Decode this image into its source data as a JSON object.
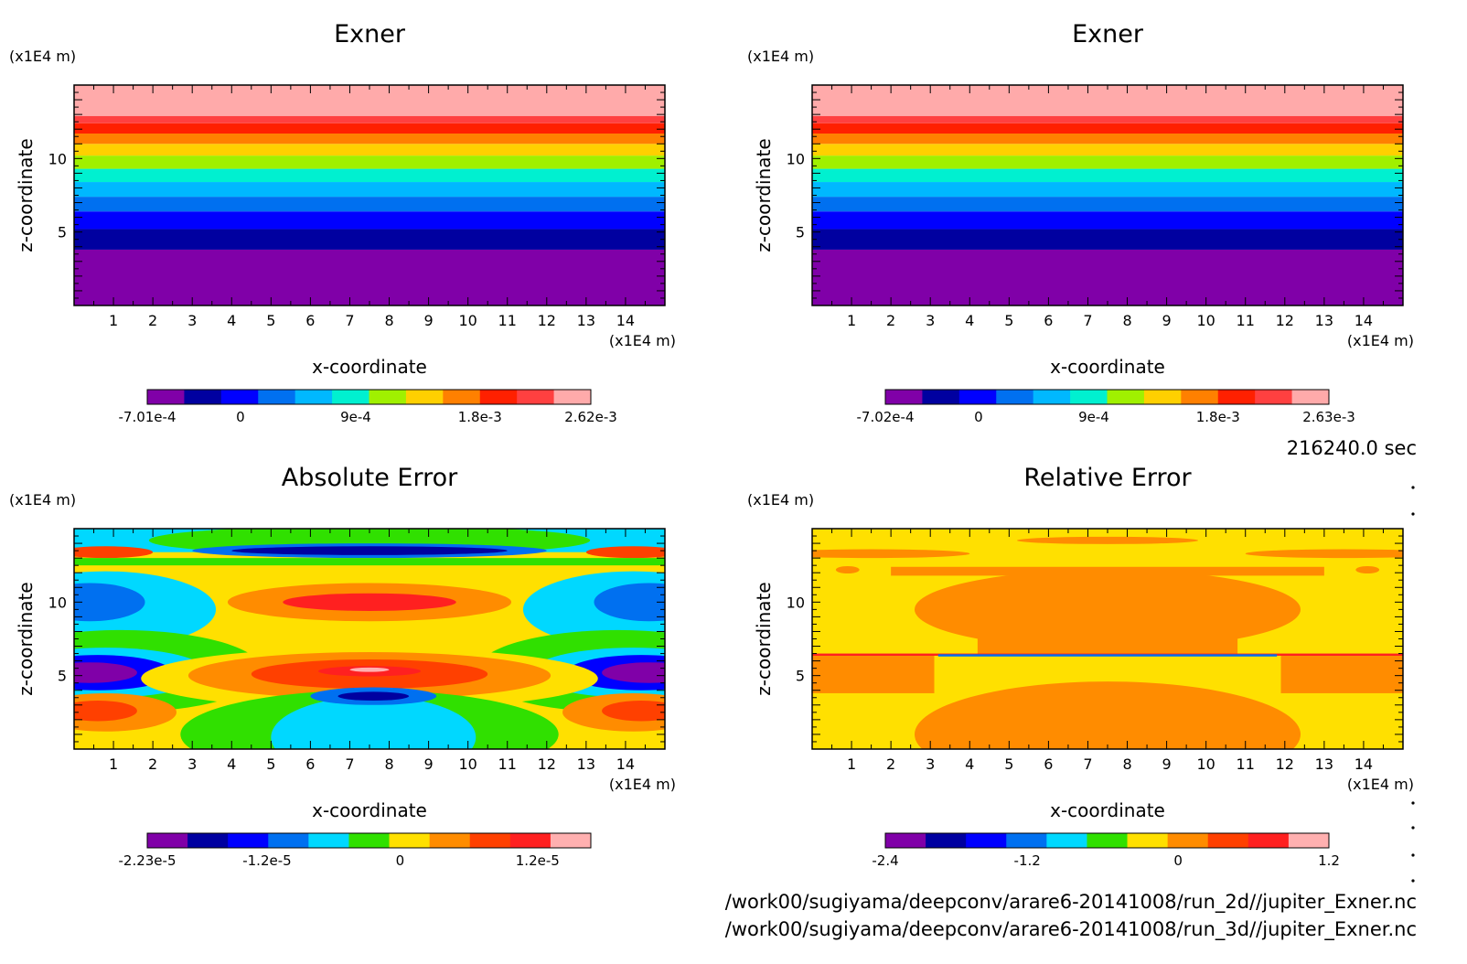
{
  "chart_data": [
    {
      "type": "contour",
      "title": "Exner",
      "xlabel": "x-coordinate",
      "ylabel": "z-coordinate",
      "x_unit": "(x1E4 m)",
      "y_unit": "(x1E4 m)",
      "xlim": [
        0,
        15
      ],
      "ylim": [
        0,
        15
      ],
      "x_ticks": [
        "1",
        "2",
        "3",
        "4",
        "5",
        "6",
        "7",
        "8",
        "9",
        "10",
        "11",
        "12",
        "13",
        "14"
      ],
      "y_ticks": [
        "5",
        "10"
      ],
      "colorbar": {
        "tick_labels": [
          "-7.01e-4",
          "0",
          "9e-4",
          "1.8e-3",
          "2.62e-3"
        ],
        "colors": [
          "#8000a8",
          "#0000a0",
          "#0000ff",
          "#0070f0",
          "#00b8ff",
          "#00f0d0",
          "#a0f000",
          "#ffd000",
          "#ff8000",
          "#ff2000",
          "#ff4040",
          "#ffaaaa"
        ]
      },
      "bands": [
        {
          "z": [
            0.0,
            3.8
          ],
          "color": "#8000a8"
        },
        {
          "z": [
            3.8,
            5.2
          ],
          "color": "#0000a0"
        },
        {
          "z": [
            5.2,
            6.4
          ],
          "color": "#0000ff"
        },
        {
          "z": [
            6.4,
            7.4
          ],
          "color": "#0070f0"
        },
        {
          "z": [
            7.4,
            8.4
          ],
          "color": "#00b8ff"
        },
        {
          "z": [
            8.4,
            9.3
          ],
          "color": "#00f0d0"
        },
        {
          "z": [
            9.3,
            10.2
          ],
          "color": "#a0f000"
        },
        {
          "z": [
            10.2,
            11.0
          ],
          "color": "#ffd000"
        },
        {
          "z": [
            11.0,
            11.7
          ],
          "color": "#ff8000"
        },
        {
          "z": [
            11.7,
            12.4
          ],
          "color": "#ff2000"
        },
        {
          "z": [
            12.4,
            12.9
          ],
          "color": "#ff4040"
        },
        {
          "z": [
            12.9,
            15.0
          ],
          "color": "#ffaaaa"
        }
      ]
    },
    {
      "type": "contour",
      "title": "Exner",
      "xlabel": "x-coordinate",
      "ylabel": "z-coordinate",
      "x_unit": "(x1E4 m)",
      "y_unit": "(x1E4 m)",
      "xlim": [
        0,
        15
      ],
      "ylim": [
        0,
        15
      ],
      "x_ticks": [
        "1",
        "2",
        "3",
        "4",
        "5",
        "6",
        "7",
        "8",
        "9",
        "10",
        "11",
        "12",
        "13",
        "14"
      ],
      "y_ticks": [
        "5",
        "10"
      ],
      "colorbar": {
        "tick_labels": [
          "-7.02e-4",
          "0",
          "9e-4",
          "1.8e-3",
          "2.63e-3"
        ],
        "colors": [
          "#8000a8",
          "#0000a0",
          "#0000ff",
          "#0070f0",
          "#00b8ff",
          "#00f0d0",
          "#a0f000",
          "#ffd000",
          "#ff8000",
          "#ff2000",
          "#ff4040",
          "#ffaaaa"
        ]
      },
      "bands": [
        {
          "z": [
            0.0,
            3.8
          ],
          "color": "#8000a8"
        },
        {
          "z": [
            3.8,
            5.2
          ],
          "color": "#0000a0"
        },
        {
          "z": [
            5.2,
            6.4
          ],
          "color": "#0000ff"
        },
        {
          "z": [
            6.4,
            7.4
          ],
          "color": "#0070f0"
        },
        {
          "z": [
            7.4,
            8.4
          ],
          "color": "#00b8ff"
        },
        {
          "z": [
            8.4,
            9.3
          ],
          "color": "#00f0d0"
        },
        {
          "z": [
            9.3,
            10.2
          ],
          "color": "#a0f000"
        },
        {
          "z": [
            10.2,
            11.0
          ],
          "color": "#ffd000"
        },
        {
          "z": [
            11.0,
            11.7
          ],
          "color": "#ff8000"
        },
        {
          "z": [
            11.7,
            12.4
          ],
          "color": "#ff2000"
        },
        {
          "z": [
            12.4,
            12.9
          ],
          "color": "#ff4040"
        },
        {
          "z": [
            12.9,
            15.0
          ],
          "color": "#ffaaaa"
        }
      ]
    },
    {
      "type": "contour",
      "title": "Absolute Error",
      "xlabel": "x-coordinate",
      "ylabel": "z-coordinate",
      "x_unit": "(x1E4 m)",
      "y_unit": "(x1E4 m)",
      "xlim": [
        0,
        15
      ],
      "ylim": [
        0,
        15
      ],
      "x_ticks": [
        "1",
        "2",
        "3",
        "4",
        "5",
        "6",
        "7",
        "8",
        "9",
        "10",
        "11",
        "12",
        "13",
        "14"
      ],
      "y_ticks": [
        "5",
        "10"
      ],
      "colorbar": {
        "tick_labels": [
          "-2.23e-5",
          "-1.2e-5",
          "0",
          "1.2e-5"
        ],
        "colors": [
          "#8000a8",
          "#0000a0",
          "#0000ff",
          "#0070f0",
          "#00d8ff",
          "#30e000",
          "#ffe000",
          "#ff8c00",
          "#ff4000",
          "#ff2020",
          "#ffb0b0"
        ]
      },
      "background": "#ffe000",
      "shapes": [
        {
          "kind": "band",
          "z": [
            13.4,
            15.0
          ],
          "color": "#00d8ff"
        },
        {
          "kind": "ellipse",
          "cx": 7.5,
          "cz": 14.2,
          "rx": 5.6,
          "rz": 1.0,
          "color": "#30e000"
        },
        {
          "kind": "ellipse",
          "cx": 7.5,
          "cz": 13.5,
          "rx": 4.5,
          "rz": 0.5,
          "color": "#0070f0"
        },
        {
          "kind": "ellipse",
          "cx": 7.5,
          "cz": 13.5,
          "rx": 3.5,
          "rz": 0.3,
          "color": "#0000a0"
        },
        {
          "kind": "ellipse",
          "cx": 0.8,
          "cz": 13.4,
          "rx": 1.2,
          "rz": 0.4,
          "color": "#ff4000"
        },
        {
          "kind": "ellipse",
          "cx": 14.2,
          "cz": 13.4,
          "rx": 1.2,
          "rz": 0.4,
          "color": "#ff4000"
        },
        {
          "kind": "band",
          "z": [
            12.5,
            13.0
          ],
          "color": "#30e000"
        },
        {
          "kind": "ellipse",
          "cx": 0.8,
          "cz": 9.5,
          "rx": 2.8,
          "rz": 2.6,
          "color": "#00d8ff"
        },
        {
          "kind": "ellipse",
          "cx": 0.4,
          "cz": 10.0,
          "rx": 1.4,
          "rz": 1.3,
          "color": "#0070f0"
        },
        {
          "kind": "ellipse",
          "cx": 14.2,
          "cz": 9.5,
          "rx": 2.8,
          "rz": 2.6,
          "color": "#00d8ff"
        },
        {
          "kind": "ellipse",
          "cx": 14.6,
          "cz": 10.0,
          "rx": 1.4,
          "rz": 1.3,
          "color": "#0070f0"
        },
        {
          "kind": "ellipse",
          "cx": 7.5,
          "cz": 10.0,
          "rx": 3.6,
          "rz": 1.3,
          "color": "#ff8c00"
        },
        {
          "kind": "ellipse",
          "cx": 7.5,
          "cz": 10.0,
          "rx": 2.2,
          "rz": 0.6,
          "color": "#ff2020"
        },
        {
          "kind": "ellipse",
          "cx": 1.2,
          "cz": 5.3,
          "rx": 3.6,
          "rz": 2.8,
          "color": "#30e000"
        },
        {
          "kind": "ellipse",
          "cx": 0.8,
          "cz": 5.2,
          "rx": 2.6,
          "rz": 1.7,
          "color": "#00d8ff"
        },
        {
          "kind": "ellipse",
          "cx": 0.6,
          "cz": 5.2,
          "rx": 1.9,
          "rz": 1.2,
          "color": "#0000ff"
        },
        {
          "kind": "ellipse",
          "cx": 0.4,
          "cz": 5.2,
          "rx": 1.2,
          "rz": 0.7,
          "color": "#8000a8"
        },
        {
          "kind": "ellipse",
          "cx": 13.8,
          "cz": 5.3,
          "rx": 3.6,
          "rz": 2.8,
          "color": "#30e000"
        },
        {
          "kind": "ellipse",
          "cx": 14.2,
          "cz": 5.2,
          "rx": 2.6,
          "rz": 1.7,
          "color": "#00d8ff"
        },
        {
          "kind": "ellipse",
          "cx": 14.4,
          "cz": 5.2,
          "rx": 1.9,
          "rz": 1.2,
          "color": "#0000ff"
        },
        {
          "kind": "ellipse",
          "cx": 14.6,
          "cz": 5.2,
          "rx": 1.2,
          "rz": 0.7,
          "color": "#8000a8"
        },
        {
          "kind": "ellipse",
          "cx": 7.5,
          "cz": 4.8,
          "rx": 5.8,
          "rz": 2.1,
          "color": "#ffe000"
        },
        {
          "kind": "ellipse",
          "cx": 7.5,
          "cz": 5.0,
          "rx": 4.6,
          "rz": 1.6,
          "color": "#ff8c00"
        },
        {
          "kind": "ellipse",
          "cx": 7.5,
          "cz": 5.1,
          "rx": 3.0,
          "rz": 1.0,
          "color": "#ff4000"
        },
        {
          "kind": "ellipse",
          "cx": 7.5,
          "cz": 5.3,
          "rx": 1.3,
          "rz": 0.35,
          "color": "#ff2020"
        },
        {
          "kind": "ellipse",
          "cx": 7.5,
          "cz": 5.4,
          "rx": 0.5,
          "rz": 0.15,
          "color": "#ffb0b0"
        },
        {
          "kind": "ellipse",
          "cx": 0.8,
          "cz": 2.5,
          "rx": 1.8,
          "rz": 1.3,
          "color": "#ff8c00"
        },
        {
          "kind": "ellipse",
          "cx": 0.6,
          "cz": 2.6,
          "rx": 1.0,
          "rz": 0.7,
          "color": "#ff4000"
        },
        {
          "kind": "ellipse",
          "cx": 14.2,
          "cz": 2.5,
          "rx": 1.8,
          "rz": 1.3,
          "color": "#ff8c00"
        },
        {
          "kind": "ellipse",
          "cx": 14.4,
          "cz": 2.6,
          "rx": 1.0,
          "rz": 0.7,
          "color": "#ff4000"
        },
        {
          "kind": "ellipse",
          "cx": 7.5,
          "cz": 1.0,
          "rx": 4.8,
          "rz": 3.0,
          "color": "#30e000"
        },
        {
          "kind": "ellipse",
          "cx": 7.6,
          "cz": 0.8,
          "rx": 2.6,
          "rz": 2.8,
          "color": "#00d8ff"
        },
        {
          "kind": "ellipse",
          "cx": 7.6,
          "cz": 3.6,
          "rx": 1.6,
          "rz": 0.6,
          "color": "#0070f0"
        },
        {
          "kind": "ellipse",
          "cx": 7.6,
          "cz": 3.6,
          "rx": 0.9,
          "rz": 0.3,
          "color": "#0000a0"
        }
      ]
    },
    {
      "type": "contour",
      "title": "Relative Error",
      "xlabel": "x-coordinate",
      "ylabel": "z-coordinate",
      "x_unit": "(x1E4 m)",
      "y_unit": "(x1E4 m)",
      "xlim": [
        0,
        15
      ],
      "ylim": [
        0,
        15
      ],
      "x_ticks": [
        "1",
        "2",
        "3",
        "4",
        "5",
        "6",
        "7",
        "8",
        "9",
        "10",
        "11",
        "12",
        "13",
        "14"
      ],
      "y_ticks": [
        "5",
        "10"
      ],
      "colorbar": {
        "tick_labels": [
          "-2.4",
          "-1.2",
          "0",
          "1.2"
        ],
        "colors": [
          "#8000a8",
          "#0000a0",
          "#0000ff",
          "#0070f0",
          "#00d8ff",
          "#30e000",
          "#ffe000",
          "#ff8c00",
          "#ff4000",
          "#ff2020",
          "#ffb0b0"
        ]
      },
      "background": "#ffe000",
      "shapes": [
        {
          "kind": "ellipse",
          "cx": 7.5,
          "cz": 14.2,
          "rx": 2.3,
          "rz": 0.25,
          "color": "#ff8c00"
        },
        {
          "kind": "ellipse",
          "cx": 1.5,
          "cz": 13.3,
          "rx": 2.5,
          "rz": 0.3,
          "color": "#ff8c00"
        },
        {
          "kind": "ellipse",
          "cx": 13.5,
          "cz": 13.3,
          "rx": 2.5,
          "rz": 0.3,
          "color": "#ff8c00"
        },
        {
          "kind": "ellipse",
          "cx": 0.9,
          "cz": 12.2,
          "rx": 0.3,
          "rz": 0.25,
          "color": "#ff8c00"
        },
        {
          "kind": "ellipse",
          "cx": 14.1,
          "cz": 12.2,
          "rx": 0.3,
          "rz": 0.25,
          "color": "#ff8c00"
        },
        {
          "kind": "rect",
          "x": [
            2.0,
            13.0
          ],
          "z": [
            11.8,
            12.4
          ],
          "color": "#ff8c00"
        },
        {
          "kind": "ellipse",
          "cx": 7.5,
          "cz": 9.5,
          "rx": 4.9,
          "rz": 2.7,
          "color": "#ff8c00"
        },
        {
          "kind": "rect",
          "x": [
            4.2,
            10.8
          ],
          "z": [
            6.4,
            9.5
          ],
          "color": "#ff8c00"
        },
        {
          "kind": "rect",
          "x": [
            0.0,
            3.1
          ],
          "z": [
            3.8,
            6.4
          ],
          "color": "#ff8c00"
        },
        {
          "kind": "rect",
          "x": [
            11.9,
            15.0
          ],
          "z": [
            3.8,
            6.4
          ],
          "color": "#ff8c00"
        },
        {
          "kind": "rect",
          "x": [
            0.0,
            15.0
          ],
          "z": [
            6.35,
            6.5
          ],
          "color": "#ff2020"
        },
        {
          "kind": "rect",
          "x": [
            3.2,
            11.8
          ],
          "z": [
            6.3,
            6.45
          ],
          "color": "#0070f0"
        },
        {
          "kind": "ellipse",
          "cx": 7.5,
          "cz": 1.0,
          "rx": 4.9,
          "rz": 3.6,
          "color": "#ff8c00"
        }
      ]
    }
  ],
  "time_label": "216240.0 sec",
  "source_files": [
    "/work00/sugiyama/deepconv/arare6-20141008/run_2d//jupiter_Exner.nc",
    "/work00/sugiyama/deepconv/arare6-20141008/run_3d//jupiter_Exner.nc"
  ]
}
